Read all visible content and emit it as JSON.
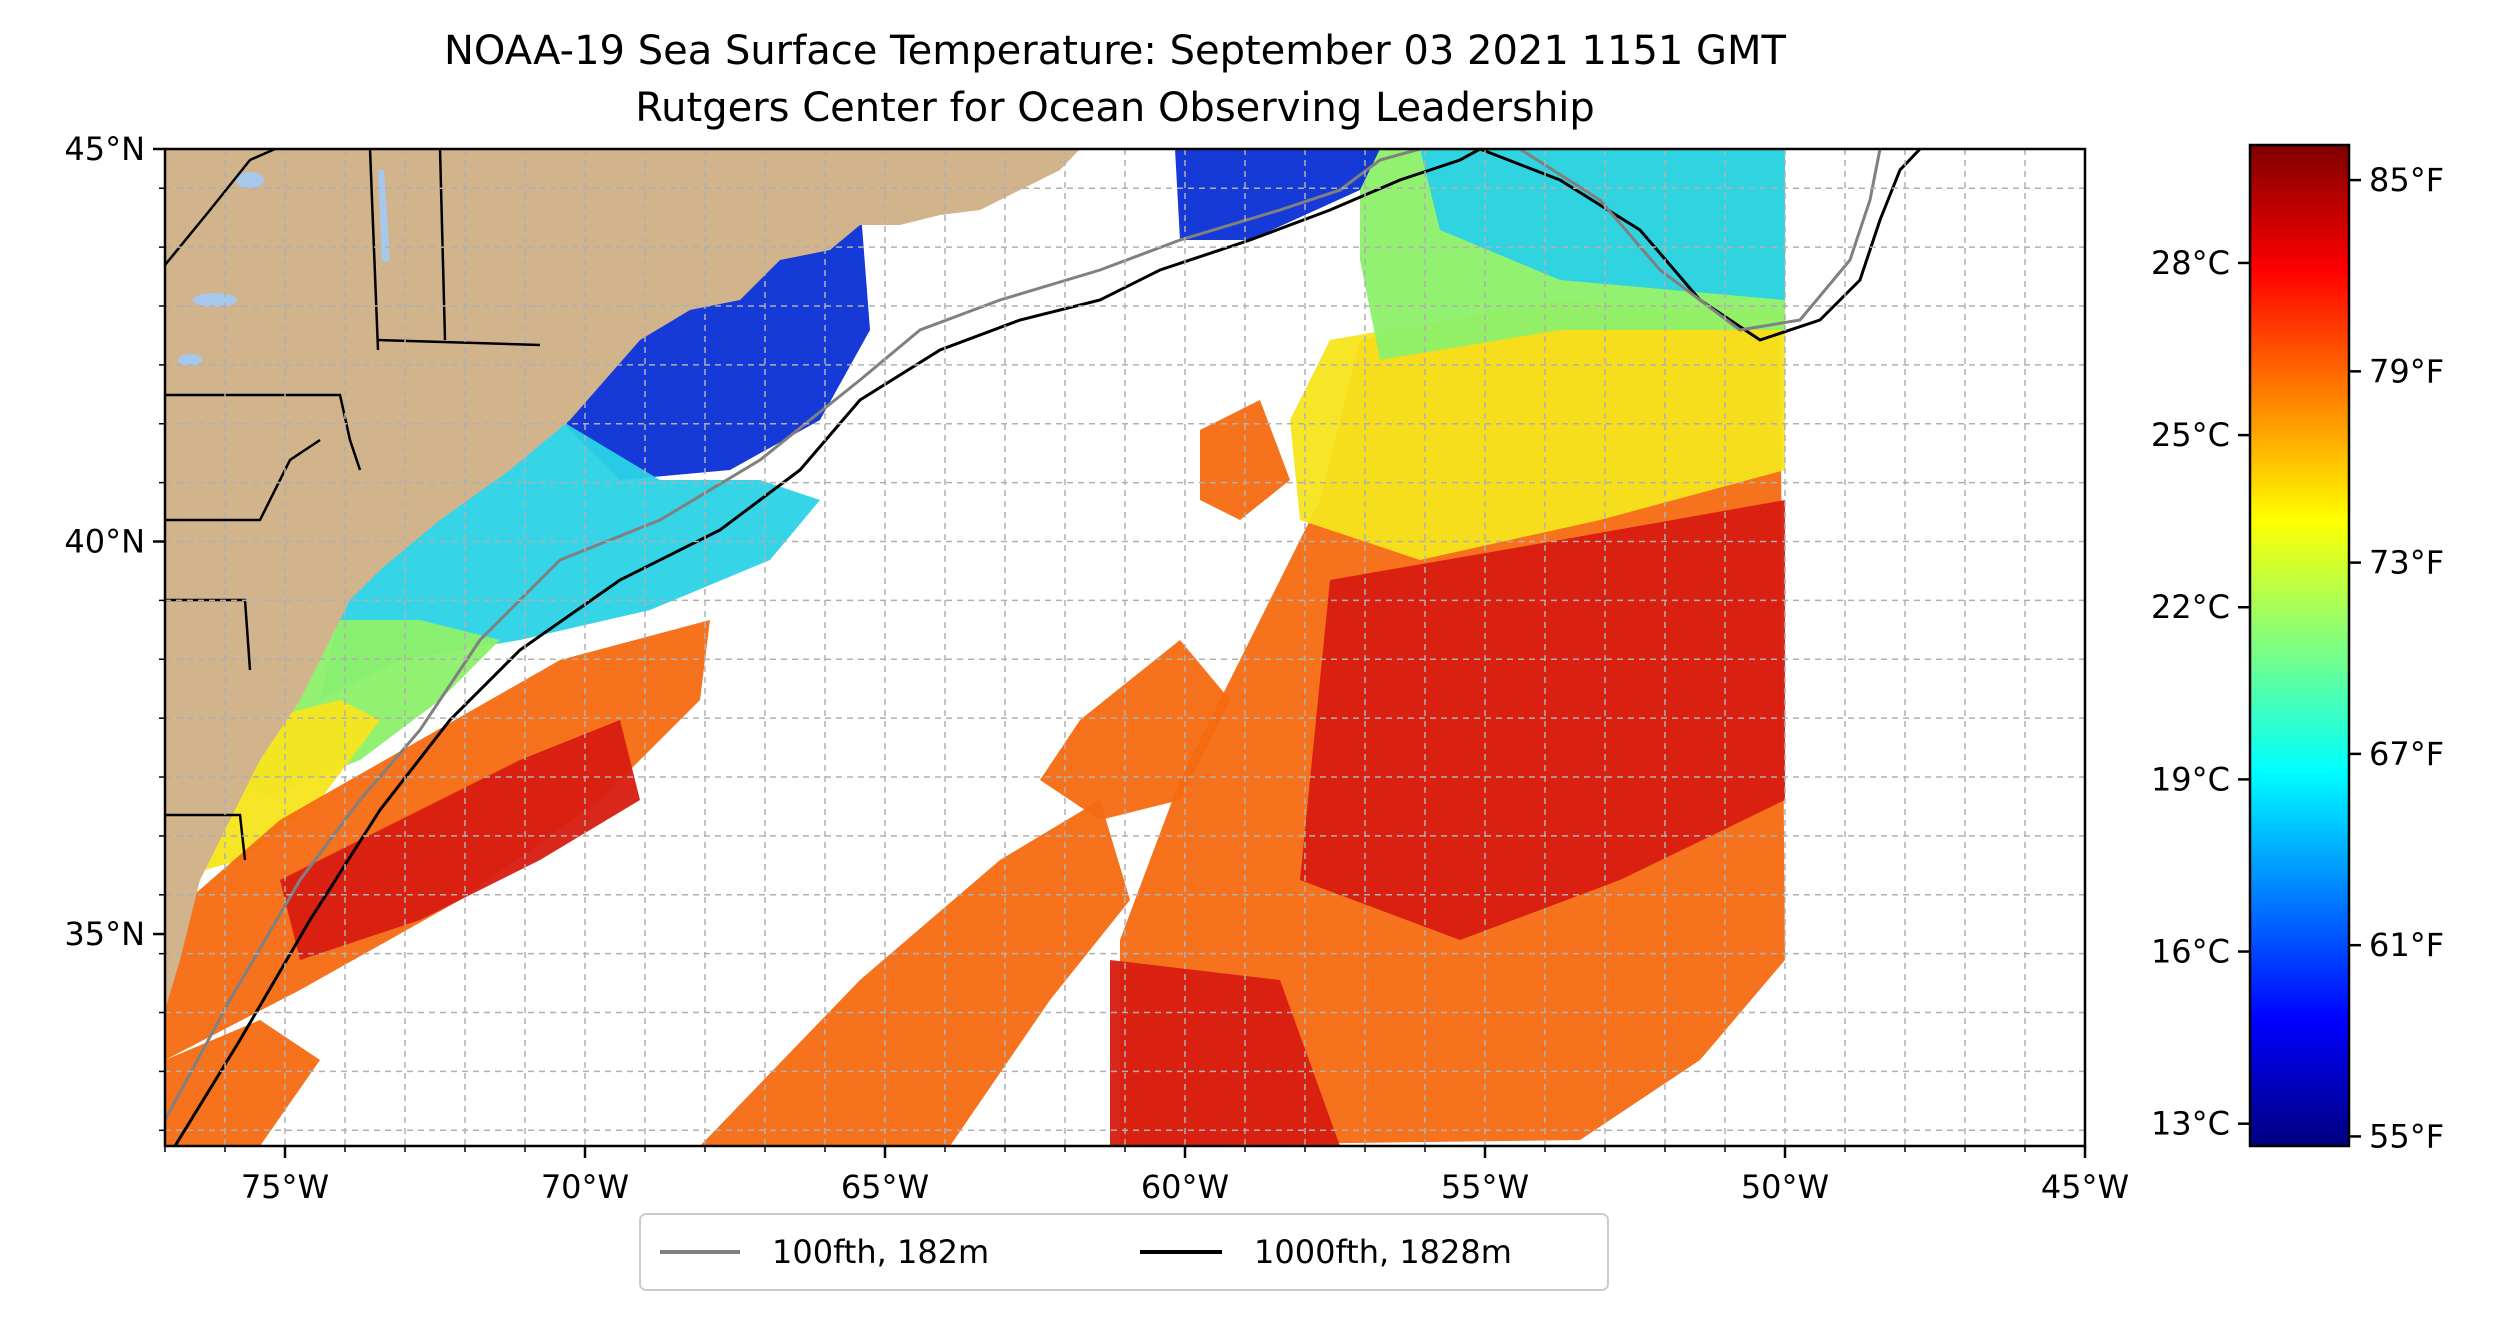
{
  "title_line1": "NOAA-19 Sea Surface Temperature: September 03 2021 1151 GMT",
  "title_line2": "Rutgers Center for Ocean Observing Leadership",
  "lat_ticks": [
    {
      "value": 45,
      "label": "45°N"
    },
    {
      "value": 40,
      "label": "40°N"
    },
    {
      "value": 35,
      "label": "35°N"
    }
  ],
  "lon_ticks": [
    {
      "value": -75,
      "label": "75°W"
    },
    {
      "value": -70,
      "label": "70°W"
    },
    {
      "value": -65,
      "label": "65°W"
    },
    {
      "value": -60,
      "label": "60°W"
    },
    {
      "value": -55,
      "label": "55°W"
    },
    {
      "value": -50,
      "label": "50°W"
    },
    {
      "value": -45,
      "label": "45°W"
    }
  ],
  "colorbar": {
    "celsius_ticks": [
      {
        "value": 28,
        "label": "28°C"
      },
      {
        "value": 25,
        "label": "25°C"
      },
      {
        "value": 22,
        "label": "22°C"
      },
      {
        "value": 19,
        "label": "19°C"
      },
      {
        "value": 16,
        "label": "16°C"
      },
      {
        "value": 13,
        "label": "13°C"
      }
    ],
    "fahrenheit_ticks": [
      {
        "value": 85,
        "label": "85°F"
      },
      {
        "value": 79,
        "label": "79°F"
      },
      {
        "value": 73,
        "label": "73°F"
      },
      {
        "value": 67,
        "label": "67°F"
      },
      {
        "value": 61,
        "label": "61°F"
      },
      {
        "value": 55,
        "label": "55°F"
      }
    ],
    "range_f": [
      54.7,
      86.1
    ],
    "colormap": [
      "#00007f",
      "#0000ff",
      "#007fff",
      "#00ffff",
      "#7fff7f",
      "#ffff00",
      "#ff7f00",
      "#ff0000",
      "#7f0000"
    ]
  },
  "legend": [
    {
      "label": "100fth, 182m",
      "color": "#808080"
    },
    {
      "label": "1000fth, 1828m",
      "color": "#000000"
    }
  ],
  "colors": {
    "land": "#d2b48c",
    "lakes": "#a6c8ec",
    "cold": "#0a2fd6",
    "cool": "#2ad2e6",
    "mild": "#8df06a",
    "warm": "#f7e41c",
    "hot": "#f56a10",
    "hottest": "#d81b10"
  },
  "chart_data": {
    "type": "heatmap",
    "title": "NOAA-19 Sea Surface Temperature: September 03 2021 1151 GMT",
    "subtitle": "Rutgers Center for Ocean Observing Leadership",
    "lon_range": [
      -77,
      -45
    ],
    "lat_range": [
      32.3,
      45
    ],
    "value_range_f": [
      54.7,
      86.1
    ],
    "grid": true,
    "legend_position": "bottom-center"
  }
}
